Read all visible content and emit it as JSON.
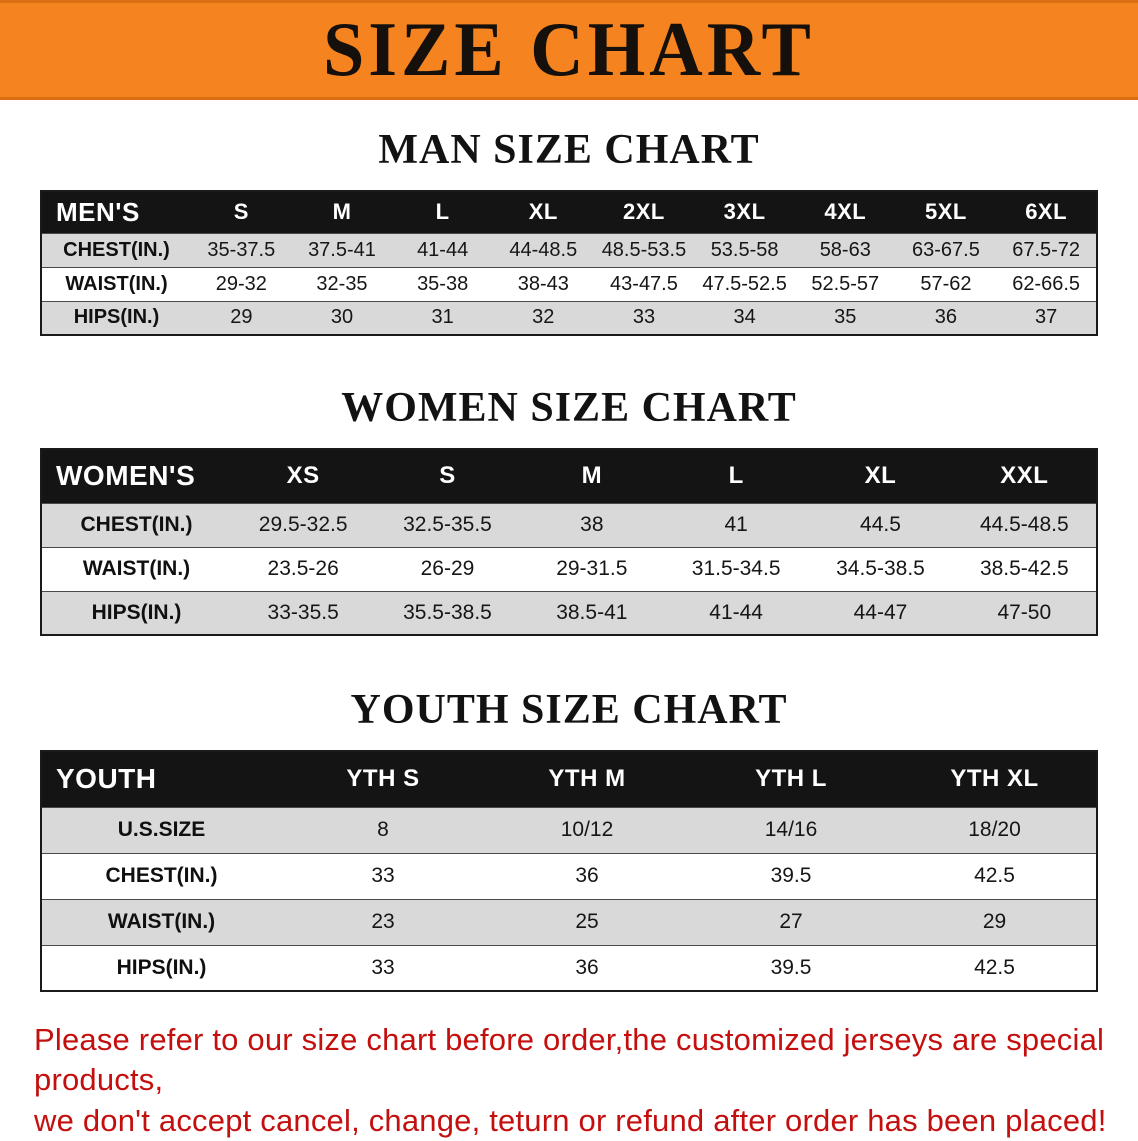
{
  "banner": {
    "title": "SIZE CHART"
  },
  "sections": {
    "men": {
      "heading": "MAN SIZE CHART"
    },
    "women": {
      "heading": "WOMEN SIZE CHART"
    },
    "youth": {
      "heading": "YOUTH SIZE CHART"
    }
  },
  "tables": {
    "men": {
      "header": [
        "MEN'S",
        "S",
        "M",
        "L",
        "XL",
        "2XL",
        "3XL",
        "4XL",
        "5XL",
        "6XL"
      ],
      "rows": [
        {
          "label": "CHEST(IN.)",
          "values": [
            "35-37.5",
            "37.5-41",
            "41-44",
            "44-48.5",
            "48.5-53.5",
            "53.5-58",
            "58-63",
            "63-67.5",
            "67.5-72"
          ]
        },
        {
          "label": "WAIST(IN.)",
          "values": [
            "29-32",
            "32-35",
            "35-38",
            "38-43",
            "43-47.5",
            "47.5-52.5",
            "52.5-57",
            "57-62",
            "62-66.5"
          ]
        },
        {
          "label": "HIPS(IN.)",
          "values": [
            "29",
            "30",
            "31",
            "32",
            "33",
            "34",
            "35",
            "36",
            "37"
          ]
        }
      ]
    },
    "women": {
      "header": [
        "WOMEN'S",
        "XS",
        "S",
        "M",
        "L",
        "XL",
        "XXL"
      ],
      "rows": [
        {
          "label": "CHEST(IN.)",
          "values": [
            "29.5-32.5",
            "32.5-35.5",
            "38",
            "41",
            "44.5",
            "44.5-48.5"
          ]
        },
        {
          "label": "WAIST(IN.)",
          "values": [
            "23.5-26",
            "26-29",
            "29-31.5",
            "31.5-34.5",
            "34.5-38.5",
            "38.5-42.5"
          ]
        },
        {
          "label": "HIPS(IN.)",
          "values": [
            "33-35.5",
            "35.5-38.5",
            "38.5-41",
            "41-44",
            "44-47",
            "47-50"
          ]
        }
      ]
    },
    "youth": {
      "header": [
        "YOUTH",
        "YTH S",
        "YTH M",
        "YTH L",
        "YTH XL"
      ],
      "rows": [
        {
          "label": "U.S.SIZE",
          "values": [
            "8",
            "10/12",
            "14/16",
            "18/20"
          ]
        },
        {
          "label": "CHEST(IN.)",
          "values": [
            "33",
            "36",
            "39.5",
            "42.5"
          ]
        },
        {
          "label": "WAIST(IN.)",
          "values": [
            "23",
            "25",
            "27",
            "29"
          ]
        },
        {
          "label": "HIPS(IN.)",
          "values": [
            "33",
            "36",
            "39.5",
            "42.5"
          ]
        }
      ]
    }
  },
  "footer": {
    "line1": "Please refer to our size chart before order,the customized jerseys are special products,",
    "line2": "we don't accept cancel, change, teturn or refund after order has been placed!"
  },
  "colors": {
    "banner_bg": "#f5831f",
    "header_bg": "#141414",
    "stripe": "#d9d9d9",
    "footer_text": "#c40f0f"
  }
}
